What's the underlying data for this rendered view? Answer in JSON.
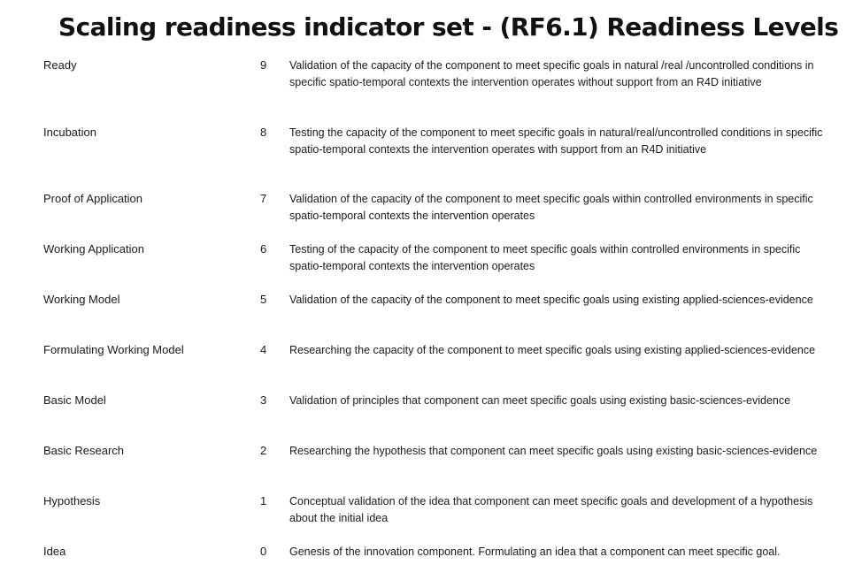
{
  "title": "Scaling readiness indicator set - (RF6.1) Readiness Levels",
  "levels": [
    {
      "name": "Ready",
      "level": "9",
      "description": "Validation of the capacity of the component to meet specific goals in natural /real /uncontrolled conditions in specific spatio-temporal contexts the intervention operates without support from an R4D initiative"
    },
    {
      "name": "Incubation",
      "level": "8",
      "description": "Testing the capacity of the component to meet specific goals in natural/real/uncontrolled conditions in specific spatio-temporal contexts the intervention operates with support from an R4D initiative"
    },
    {
      "name": "Proof of Application",
      "level": "7",
      "description": "Validation of the capacity of the component to meet specific goals within controlled environments in specific spatio-temporal contexts the intervention operates"
    },
    {
      "name": "Working Application",
      "level": "6",
      "description": "Testing of the capacity of the component to meet specific goals within controlled environments in specific spatio-temporal contexts the intervention operates"
    },
    {
      "name": "Working Model",
      "level": "5",
      "description": "Validation of the capacity of the component to meet specific goals using existing applied-sciences-evidence"
    },
    {
      "name": "Formulating Working Model",
      "level": "4",
      "description": "Researching the capacity of the component to meet specific goals using existing applied-sciences-evidence"
    },
    {
      "name": "Basic Model",
      "level": "3",
      "description": "Validation of principles that component can meet specific goals using existing basic-sciences-evidence"
    },
    {
      "name": "Basic Research",
      "level": "2",
      "description": "Researching the hypothesis that component can meet specific goals using existing basic-sciences-evidence"
    },
    {
      "name": "Hypothesis",
      "level": "1",
      "description": "Conceptual validation of the idea that component can meet specific goals and development of a hypothesis about the initial idea"
    },
    {
      "name": "Idea",
      "level": "0",
      "description": "Genesis of the innovation component. Formulating an idea that a component can meet specific goal."
    }
  ]
}
